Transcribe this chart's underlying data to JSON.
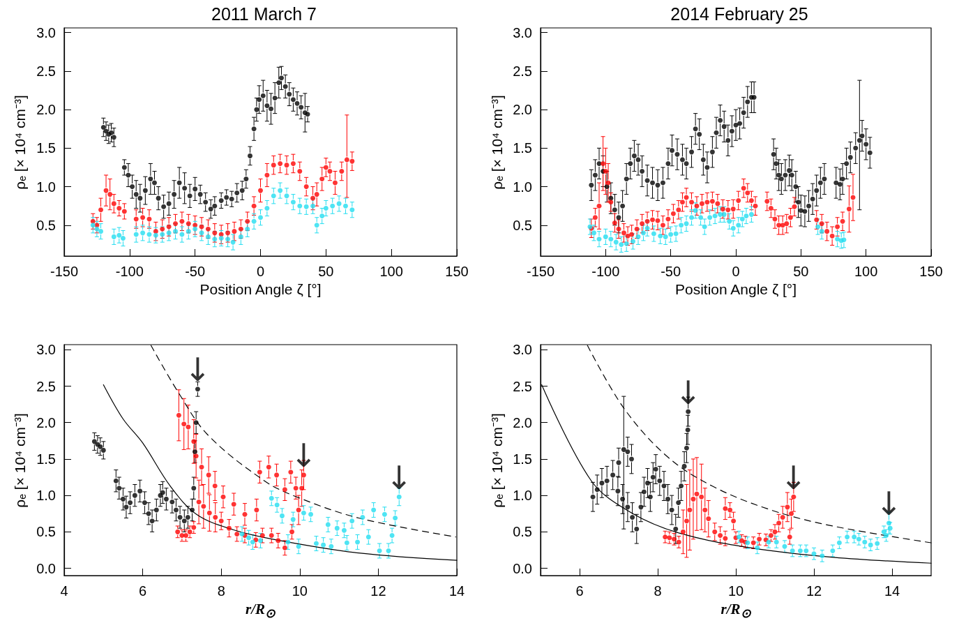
{
  "chart_data": [
    {
      "type": "scatter",
      "title": "2011 March 7",
      "xlabel": "Position Angle ζ [°]",
      "ylabel": "ρₑ [× 10⁴ cm⁻³]",
      "xlim": [
        -150,
        150
      ],
      "xticks": [
        -150,
        -100,
        -50,
        0,
        50,
        100,
        150
      ],
      "ylim": [
        0.1,
        3.06
      ],
      "yticks": [
        0.5,
        {
          "value": 1,
          "label": "1.0"
        },
        1.5,
        {
          "value": 2,
          "label": "2.0"
        },
        2.5,
        {
          "value": 3,
          "label": "3.0"
        }
      ],
      "grid": false,
      "marker": "circle",
      "series": [
        {
          "color": "#000000",
          "x": [
            -120,
            -118,
            -116,
            -114,
            -112,
            -104,
            -101,
            -98,
            -95,
            -92,
            -88,
            -84,
            -81,
            -78,
            -74,
            -70,
            -66,
            -62,
            -58,
            -54,
            -50,
            -46,
            -42,
            -38,
            -35,
            -30,
            -26,
            -22,
            -18,
            -14,
            -11,
            -8,
            -5,
            -3,
            -1,
            2,
            5,
            8,
            11,
            14,
            16,
            19,
            22,
            25,
            28,
            31,
            34,
            36
          ],
          "values": [
            1.77,
            1.72,
            1.68,
            1.7,
            1.64,
            1.25,
            1.15,
            1.0,
            0.9,
            0.85,
            0.95,
            1.1,
            1.05,
            0.85,
            0.74,
            0.78,
            0.9,
            1.05,
            0.98,
            0.88,
            0.97,
            0.9,
            0.8,
            0.71,
            0.75,
            0.82,
            0.86,
            0.84,
            0.92,
            0.95,
            1.1,
            1.4,
            1.75,
            2.0,
            2.13,
            2.18,
            2.05,
            2.01,
            2.15,
            2.35,
            2.41,
            2.3,
            2.2,
            2.13,
            2.08,
            2.03,
            1.96,
            1.94
          ],
          "errors": [
            0.12,
            0.12,
            0.12,
            0.12,
            0.12,
            0.1,
            0.15,
            0.15,
            0.18,
            0.18,
            0.18,
            0.2,
            0.15,
            0.15,
            0.15,
            0.15,
            0.18,
            0.2,
            0.2,
            0.15,
            0.15,
            0.12,
            0.12,
            0.12,
            0.12,
            0.1,
            0.1,
            0.1,
            0.12,
            0.12,
            0.12,
            0.12,
            0.15,
            0.15,
            0.18,
            0.2,
            0.2,
            0.2,
            0.2,
            0.2,
            0.15,
            0.15,
            0.15,
            0.15,
            0.15,
            0.15,
            0.25,
            0.1
          ]
        },
        {
          "color": "#ff0000",
          "x": [
            -128,
            -125,
            -122,
            -118,
            -115,
            -112,
            -108,
            -104,
            -95,
            -90,
            -85,
            -80,
            -75,
            -70,
            -65,
            -60,
            -55,
            -50,
            -45,
            -40,
            -35,
            -30,
            -25,
            -20,
            -15,
            -10,
            -5,
            0,
            5,
            10,
            15,
            20,
            25,
            30,
            35,
            40,
            43,
            47,
            50,
            53,
            57,
            62,
            66,
            70
          ],
          "values": [
            0.55,
            0.5,
            0.7,
            0.95,
            0.9,
            0.78,
            0.72,
            0.68,
            0.58,
            0.6,
            0.58,
            0.42,
            0.45,
            0.48,
            0.52,
            0.55,
            0.52,
            0.5,
            0.48,
            0.45,
            0.4,
            0.38,
            0.4,
            0.42,
            0.45,
            0.55,
            0.75,
            0.95,
            1.15,
            1.28,
            1.3,
            1.28,
            1.3,
            1.2,
            1.0,
            0.85,
            0.9,
            1.1,
            1.25,
            1.2,
            1.05,
            1.2,
            1.35,
            1.33
          ],
          "errors": [
            0.1,
            0.1,
            0.15,
            0.2,
            0.2,
            0.12,
            0.1,
            0.1,
            0.12,
            0.12,
            0.12,
            0.12,
            0.12,
            0.12,
            0.12,
            0.12,
            0.12,
            0.12,
            0.12,
            0.12,
            0.12,
            0.12,
            0.12,
            0.12,
            0.12,
            0.12,
            0.12,
            0.15,
            0.15,
            0.12,
            0.12,
            0.12,
            0.12,
            0.12,
            0.12,
            0.15,
            0.15,
            0.15,
            0.12,
            0.12,
            0.15,
            0.12,
            [
              0.86,
              1.93
            ],
            0.12
          ]
        },
        {
          "color": "#22ddf0",
          "x": [
            -128,
            -125,
            -122,
            -112,
            -108,
            -105,
            -95,
            -90,
            -85,
            -80,
            -75,
            -70,
            -65,
            -60,
            -55,
            -50,
            -45,
            -40,
            -35,
            -30,
            -25,
            -21,
            -15,
            -10,
            -5,
            0,
            5,
            10,
            15,
            20,
            25,
            30,
            35,
            40,
            43,
            47,
            50,
            55,
            60,
            65,
            70
          ],
          "values": [
            0.5,
            0.45,
            0.42,
            0.35,
            0.37,
            0.33,
            0.38,
            0.4,
            0.38,
            0.37,
            0.38,
            0.4,
            0.42,
            0.38,
            0.42,
            0.45,
            0.4,
            0.35,
            0.32,
            0.33,
            0.32,
            0.28,
            0.35,
            0.45,
            0.55,
            0.6,
            0.72,
            0.88,
            0.95,
            0.88,
            0.8,
            0.75,
            0.74,
            0.75,
            0.5,
            0.62,
            0.72,
            0.75,
            0.78,
            0.75,
            0.7
          ],
          "errors": [
            0.1,
            0.1,
            0.1,
            0.1,
            0.1,
            0.1,
            0.1,
            0.1,
            0.1,
            0.1,
            0.1,
            0.1,
            0.1,
            0.1,
            0.1,
            0.1,
            0.1,
            0.1,
            0.1,
            0.1,
            0.1,
            0.1,
            0.1,
            0.1,
            0.1,
            0.1,
            0.1,
            0.1,
            0.1,
            0.1,
            0.1,
            0.1,
            0.1,
            0.1,
            0.1,
            0.1,
            0.1,
            0.1,
            0.1,
            0.1,
            0.1
          ]
        }
      ]
    },
    {
      "type": "scatter",
      "title": "2014 February 25",
      "xlabel": "Position Angle ζ [°]",
      "ylabel": "ρₑ [× 10⁴ cm⁻³]",
      "xlim": [
        -150,
        150
      ],
      "xticks": [
        -150,
        -100,
        -50,
        0,
        50,
        100,
        150
      ],
      "ylim": [
        0.1,
        3.06
      ],
      "yticks": [
        0.5,
        {
          "value": 1,
          "label": "1.0"
        },
        1.5,
        {
          "value": 2,
          "label": "2.0"
        },
        2.5,
        {
          "value": 3,
          "label": "3.0"
        }
      ],
      "grid": false,
      "marker": "circle",
      "series": [
        {
          "color": "#000000",
          "x": [
            -111,
            -108,
            -105,
            -102,
            -99,
            -96,
            -93,
            -90,
            -87,
            -84,
            -81,
            -78,
            -75,
            -72,
            -68,
            -64,
            -60,
            -56,
            -52,
            -49,
            -45,
            -41,
            -38,
            -34,
            -31,
            -28,
            -25,
            -22,
            -18,
            -15,
            -12,
            -9,
            -6,
            -3,
            0,
            3,
            6,
            9,
            12,
            14,
            29,
            31,
            33,
            35,
            38,
            41,
            43,
            46,
            48,
            50,
            53,
            56,
            59,
            62,
            65,
            68,
            77,
            80,
            82,
            85,
            88,
            92,
            95,
            97,
            100,
            103
          ],
          "values": [
            1.02,
            1.15,
            1.3,
            1.2,
            1.0,
            0.85,
            0.7,
            0.6,
            0.75,
            1.1,
            1.3,
            1.4,
            1.35,
            1.2,
            1.08,
            1.05,
            1.02,
            1.05,
            1.3,
            1.47,
            1.42,
            1.35,
            1.3,
            1.45,
            1.75,
            1.68,
            1.35,
            1.25,
            1.45,
            1.7,
            1.86,
            1.78,
            1.6,
            1.72,
            1.8,
            1.82,
            1.96,
            2.1,
            2.16,
            2.16,
            1.42,
            1.3,
            1.15,
            1.1,
            1.15,
            1.21,
            1.15,
            1.0,
            0.8,
            0.69,
            0.68,
            0.75,
            0.84,
            0.95,
            1.05,
            1.1,
            1.05,
            1.03,
            1.1,
            1.3,
            1.38,
            1.5,
            1.6,
            1.66,
            1.55,
            1.44
          ],
          "errors": [
            0.2,
            0.2,
            0.2,
            0.2,
            0.2,
            0.2,
            0.2,
            0.2,
            0.2,
            0.2,
            0.2,
            0.2,
            0.2,
            0.2,
            0.2,
            0.2,
            0.2,
            0.2,
            0.2,
            0.2,
            0.2,
            0.2,
            0.2,
            0.2,
            0.2,
            0.2,
            0.2,
            0.2,
            0.2,
            0.2,
            0.2,
            0.2,
            0.2,
            0.2,
            0.2,
            0.2,
            0.2,
            0.2,
            0.2,
            0.2,
            0.2,
            0.2,
            0.2,
            0.2,
            0.2,
            0.2,
            0.2,
            0.2,
            0.2,
            0.2,
            0.2,
            0.2,
            0.2,
            0.2,
            0.2,
            0.2,
            0.2,
            0.2,
            0.2,
            0.2,
            0.2,
            0.2,
            [
              0.7,
              2.38
            ],
            0.2,
            0.2,
            0.2
          ]
        },
        {
          "color": "#ff0000",
          "x": [
            -111,
            -108,
            -105,
            -102,
            -100,
            -98,
            -96,
            -93,
            -90,
            -86,
            -83,
            -80,
            -76,
            -72,
            -68,
            -64,
            -60,
            -56,
            -52,
            -48,
            -44,
            -41,
            -38,
            -34,
            -30,
            -26,
            -22,
            -18,
            -14,
            -10,
            -6,
            -2,
            2,
            6,
            9,
            12,
            15,
            24,
            27,
            30,
            33,
            36,
            39,
            42,
            45,
            62,
            66,
            70,
            74,
            78,
            82,
            87,
            90
          ],
          "values": [
            0.46,
            0.6,
            0.75,
            1.3,
            1.2,
            1.05,
            0.8,
            0.53,
            0.45,
            0.4,
            0.36,
            0.38,
            0.45,
            0.52,
            0.55,
            0.57,
            0.56,
            0.5,
            0.58,
            0.65,
            0.7,
            0.8,
            0.86,
            0.8,
            0.75,
            0.78,
            0.8,
            0.81,
            0.78,
            0.71,
            0.7,
            0.71,
            0.82,
            0.98,
            0.92,
            0.82,
            0.75,
            0.81,
            0.72,
            0.58,
            0.5,
            0.5,
            0.52,
            0.6,
            0.74,
            0.57,
            0.52,
            0.42,
            0.36,
            0.48,
            0.55,
            0.71,
            0.86
          ],
          "errors": [
            0.12,
            0.12,
            0.3,
            0.35,
            0.3,
            0.25,
            0.12,
            0.12,
            0.12,
            0.12,
            0.12,
            0.12,
            0.12,
            0.12,
            0.12,
            0.12,
            0.12,
            0.12,
            0.12,
            0.12,
            0.12,
            0.12,
            0.12,
            0.12,
            0.12,
            0.12,
            0.12,
            0.12,
            0.12,
            0.12,
            0.12,
            0.12,
            0.12,
            0.12,
            0.12,
            0.12,
            0.12,
            0.12,
            0.12,
            0.12,
            0.12,
            0.12,
            0.12,
            0.12,
            0.12,
            0.12,
            0.12,
            0.12,
            0.12,
            0.12,
            0.12,
            0.3,
            0.3
          ]
        },
        {
          "color": "#22ddf0",
          "x": [
            -112,
            -109,
            -105,
            -100,
            -96,
            -92,
            -88,
            -84,
            -79,
            -75,
            -71,
            -68,
            -63,
            -58,
            -54,
            -50,
            -46,
            -42,
            -38,
            -34,
            -31,
            -27,
            -24,
            -20,
            -16,
            -12,
            -9,
            -5,
            -2,
            2,
            5,
            8,
            12,
            63,
            66,
            78,
            81,
            83
          ],
          "values": [
            0.48,
            0.4,
            0.32,
            0.35,
            0.32,
            0.28,
            0.25,
            0.26,
            0.29,
            0.35,
            0.4,
            0.46,
            0.39,
            0.36,
            0.35,
            0.38,
            0.39,
            0.5,
            0.52,
            0.6,
            0.69,
            0.6,
            0.48,
            0.6,
            0.62,
            0.64,
            0.64,
            0.55,
            0.46,
            0.5,
            0.58,
            0.62,
            0.64,
            0.48,
            0.42,
            0.32,
            0.3,
            0.31
          ],
          "errors": [
            0.1,
            0.1,
            0.1,
            0.1,
            0.1,
            0.1,
            0.1,
            0.1,
            0.1,
            0.1,
            0.1,
            0.1,
            0.1,
            0.1,
            0.1,
            0.1,
            0.1,
            0.1,
            0.1,
            0.1,
            0.1,
            0.1,
            0.1,
            0.1,
            0.1,
            0.1,
            0.1,
            0.1,
            0.1,
            0.1,
            0.1,
            0.1,
            0.1,
            0.1,
            0.1,
            0.1,
            0.1,
            0.1
          ]
        }
      ]
    },
    {
      "type": "scatter",
      "xlabel": "r/R$_{⊙}$",
      "ylabel": "ρₑ [× 10⁴ cm⁻³]",
      "xlim": [
        4,
        14
      ],
      "xticks": [
        4,
        6,
        8,
        10,
        12,
        14
      ],
      "ylim": [
        -0.1,
        3.07
      ],
      "yticks": [
        {
          "value": 0,
          "label": "0.0"
        },
        0.5,
        {
          "value": 1,
          "label": "1.0"
        },
        1.5,
        {
          "value": 2,
          "label": "2.0"
        },
        2.5,
        {
          "value": 3,
          "label": "3.0"
        }
      ],
      "grid": false,
      "marker": "circle",
      "annotations": [
        {
          "text": "↓",
          "x": 7.4,
          "y": 2.46
        },
        {
          "text": "↓",
          "x": 10.1,
          "y": 1.28
        },
        {
          "text": "↓",
          "x": 12.53,
          "y": 0.98
        }
      ],
      "series": [
        {
          "color": "#000000",
          "x": [
            4.77,
            4.85,
            4.92,
            5.0,
            5.32,
            5.4,
            5.5,
            5.58,
            5.68,
            5.8,
            5.93,
            6.05,
            6.15,
            6.24,
            6.35,
            6.45,
            6.51,
            6.6,
            6.75,
            6.85,
            6.95,
            7.06,
            7.15,
            7.26,
            7.3,
            7.33,
            7.36,
            7.4
          ],
          "values": [
            1.74,
            1.7,
            1.67,
            1.62,
            1.2,
            1.1,
            0.95,
            0.84,
            0.9,
            1.0,
            1.06,
            0.9,
            0.75,
            0.65,
            0.8,
            1.0,
            1.04,
            0.95,
            0.91,
            0.8,
            0.7,
            0.65,
            0.7,
            0.8,
            1.1,
            1.6,
            2.0,
            2.46
          ],
          "errors": [
            0.12,
            0.12,
            0.12,
            0.12,
            0.15,
            0.15,
            0.15,
            0.15,
            0.15,
            0.15,
            0.15,
            0.15,
            0.15,
            0.15,
            0.15,
            0.15,
            0.15,
            0.15,
            0.15,
            0.15,
            0.15,
            0.15,
            0.15,
            0.15,
            0.15,
            0.15,
            0.15,
            0.1
          ]
        },
        {
          "color": "#ff0000",
          "x": [
            6.89,
            7.0,
            7.1,
            7.2,
            7.3,
            6.92,
            7.05,
            7.16,
            7.3,
            7.36,
            7.5,
            7.68,
            7.84,
            8.05,
            8.32,
            8.6,
            8.9,
            7.43,
            7.55,
            7.7,
            7.85,
            8.0,
            8.2,
            8.4,
            8.6,
            8.88,
            9.05,
            9.28,
            9.45,
            9.62,
            9.8,
            9.97,
            10.05,
            10.1,
            8.98,
            9.21,
            9.41,
            9.62,
            9.77,
            9.9
          ],
          "values": [
            0.5,
            0.45,
            0.45,
            0.5,
            0.56,
            2.1,
            1.98,
            1.94,
            1.74,
            1.54,
            1.39,
            1.28,
            1.13,
            0.98,
            0.88,
            0.74,
            0.8,
            0.91,
            0.85,
            0.76,
            0.7,
            0.65,
            0.55,
            0.47,
            0.45,
            0.39,
            0.45,
            0.45,
            0.38,
            0.28,
            0.5,
            0.8,
            1.1,
            1.28,
            1.32,
            1.39,
            1.28,
            1.08,
            1.32,
            1.1
          ],
          "errors": [
            0.08,
            0.08,
            0.08,
            0.08,
            0.08,
            0.35,
            0.35,
            0.3,
            0.3,
            0.3,
            0.25,
            0.25,
            0.2,
            0.15,
            0.15,
            0.15,
            0.15,
            0.3,
            0.3,
            0.25,
            0.2,
            0.12,
            0.12,
            0.1,
            0.1,
            0.1,
            0.1,
            0.1,
            0.1,
            0.1,
            0.1,
            0.2,
            0.25,
            0.2,
            0.15,
            0.15,
            0.15,
            0.15,
            0.15,
            0.15
          ]
        },
        {
          "color": "#22ddf0",
          "x": [
            8.53,
            8.7,
            8.8,
            9.0,
            9.28,
            9.42,
            9.55,
            9.7,
            9.83,
            9.97,
            10.1,
            10.28,
            10.42,
            10.6,
            10.72,
            10.8,
            10.95,
            11.13,
            11.2,
            11.33,
            11.47,
            11.6,
            11.75,
            11.88,
            12.03,
            12.16,
            12.26,
            12.35,
            12.43,
            12.53
          ],
          "values": [
            0.47,
            0.42,
            0.36,
            0.38,
            0.96,
            0.87,
            0.72,
            0.36,
            0.67,
            0.3,
            0.76,
            0.74,
            0.34,
            0.32,
            0.6,
            0.3,
            0.55,
            0.52,
            0.35,
            0.65,
            0.36,
            0.7,
            0.43,
            0.8,
            0.24,
            0.74,
            0.24,
            0.45,
            0.69,
            0.98
          ],
          "errors": [
            0.1,
            0.1,
            0.1,
            0.1,
            0.1,
            0.1,
            0.1,
            0.1,
            0.1,
            0.1,
            0.1,
            0.1,
            0.1,
            0.1,
            0.1,
            0.1,
            0.1,
            0.1,
            0.1,
            0.1,
            0.1,
            0.1,
            0.1,
            0.1,
            0.1,
            0.1,
            0.1,
            0.1,
            0.1,
            0.12
          ]
        },
        {
          "type": "line",
          "color": "#000000",
          "line_style": "solid",
          "marker": "none",
          "x": [
            5.0,
            5.5,
            6.0,
            6.7,
            7.37,
            8.3,
            9.4,
            11.5,
            14.0
          ],
          "values": [
            2.52,
            2.05,
            1.72,
            1.13,
            0.74,
            0.53,
            0.39,
            0.21,
            0.11
          ]
        },
        {
          "type": "line",
          "color": "#000000",
          "line_style": "dashed",
          "marker": "none",
          "x": [
            6.21,
            6.9,
            7.66,
            9.1,
            9.92,
            11.5,
            13.97
          ],
          "values": [
            3.06,
            2.42,
            1.83,
            1.2,
            0.98,
            0.69,
            0.43
          ]
        }
      ]
    },
    {
      "type": "scatter",
      "xlabel": "r/R$_{⊙}$",
      "ylabel": "ρₑ [× 10⁴ cm⁻³]",
      "xlim": [
        5,
        15
      ],
      "xticks": [
        6,
        8,
        10,
        12,
        14
      ],
      "ylim": [
        -0.1,
        3.07
      ],
      "yticks": [
        {
          "value": 0,
          "label": "0.0"
        },
        0.5,
        {
          "value": 1,
          "label": "1.0"
        },
        1.5,
        {
          "value": 2,
          "label": "2.0"
        },
        2.5,
        {
          "value": 3,
          "label": "3.0"
        }
      ],
      "grid": false,
      "marker": "circle",
      "annotations": [
        {
          "text": "↓",
          "x": 8.78,
          "y": 2.15
        },
        {
          "text": "↓",
          "x": 11.48,
          "y": 0.98
        },
        {
          "text": "↓",
          "x": 13.92,
          "y": 0.62
        }
      ],
      "series": [
        {
          "color": "#000000",
          "x": [
            6.34,
            6.45,
            6.57,
            6.7,
            6.85,
            7.0,
            7.13,
            7.23,
            7.33,
            6.98,
            7.1,
            7.23,
            7.35,
            7.46,
            7.57,
            7.65,
            7.74,
            7.81,
            7.88,
            7.95,
            8.05,
            8.16,
            8.26,
            8.36,
            8.46,
            8.53,
            8.6,
            8.68,
            8.74,
            8.77,
            8.78
          ],
          "values": [
            0.98,
            1.08,
            1.17,
            1.2,
            1.28,
            1.45,
            1.63,
            1.6,
            1.5,
            1.06,
            0.95,
            0.84,
            0.7,
            0.54,
            0.84,
            1.05,
            1.17,
            0.98,
            1.25,
            1.36,
            1.2,
            1.13,
            0.95,
            0.8,
            0.54,
            0.9,
            1.13,
            1.4,
            1.65,
            1.9,
            2.15
          ],
          "errors": [
            0.2,
            0.2,
            0.2,
            0.2,
            0.2,
            0.2,
            [
              0.54,
              2.36
            ],
            0.2,
            0.2,
            0.2,
            0.2,
            0.2,
            0.2,
            0.2,
            0.2,
            0.2,
            0.2,
            0.2,
            0.2,
            0.2,
            0.2,
            0.2,
            0.2,
            0.2,
            0.2,
            0.2,
            0.2,
            0.2,
            0.2,
            0.2,
            0.2
          ]
        },
        {
          "color": "#ff0000",
          "x": [
            8.19,
            8.3,
            8.42,
            8.54,
            8.65,
            8.74,
            8.82,
            8.91,
            9.0,
            9.12,
            9.21,
            9.3,
            9.46,
            9.6,
            9.73,
            9.85,
            9.94,
            9.73,
            10.0,
            10.15,
            10.24,
            10.45,
            10.6,
            10.77,
            10.9,
            11.0,
            11.1,
            11.2,
            11.32,
            11.38,
            11.42,
            11.48
          ],
          "values": [
            0.43,
            0.42,
            0.4,
            0.36,
            0.5,
            0.65,
            0.8,
            0.95,
            1.02,
            0.98,
            0.8,
            0.68,
            0.5,
            0.45,
            0.82,
            0.8,
            0.65,
            0.41,
            0.42,
            0.38,
            0.36,
            0.35,
            0.4,
            0.39,
            0.45,
            0.5,
            0.62,
            0.7,
            0.84,
            0.43,
            0.75,
            0.98
          ],
          "errors": [
            0.08,
            0.08,
            0.08,
            0.08,
            0.3,
            0.5,
            0.55,
            0.55,
            0.5,
            0.45,
            0.3,
            0.25,
            0.12,
            0.12,
            0.15,
            0.1,
            0.12,
            0.1,
            0.08,
            0.08,
            0.08,
            0.08,
            0.08,
            0.08,
            0.08,
            0.1,
            0.12,
            0.15,
            0.2,
            0.1,
            0.2,
            0.2
          ]
        },
        {
          "color": "#22ddf0",
          "x": [
            10.08,
            10.3,
            10.55,
            10.84,
            11.04,
            11.25,
            11.45,
            11.65,
            11.8,
            12.0,
            12.21,
            12.48,
            12.65,
            12.85,
            13.03,
            13.15,
            13.3,
            13.45,
            13.62,
            13.79,
            13.85,
            13.92,
            13.95
          ],
          "values": [
            0.43,
            0.35,
            0.28,
            0.36,
            0.36,
            0.3,
            0.24,
            0.24,
            0.24,
            0.2,
            0.17,
            0.24,
            0.35,
            0.43,
            0.43,
            0.4,
            0.36,
            0.32,
            0.34,
            0.5,
            0.45,
            0.62,
            0.55
          ],
          "errors": [
            0.08,
            0.08,
            0.08,
            0.08,
            0.08,
            0.08,
            0.08,
            0.08,
            0.08,
            0.08,
            0.08,
            0.08,
            0.08,
            0.08,
            0.08,
            0.08,
            0.08,
            0.08,
            0.08,
            0.08,
            0.08,
            0.15,
            0.08
          ]
        },
        {
          "type": "line",
          "color": "#000000",
          "line_style": "solid",
          "marker": "none",
          "x": [
            5.03,
            6.3,
            7.33,
            8.57,
            10.4,
            12.5,
            15.0
          ],
          "values": [
            2.52,
            1.2,
            0.76,
            0.48,
            0.28,
            0.15,
            0.07
          ]
        },
        {
          "type": "line",
          "color": "#000000",
          "line_style": "dashed",
          "marker": "none",
          "x": [
            6.2,
            7.13,
            8.23,
            9.39,
            10.9,
            12.48,
            15.0
          ],
          "values": [
            3.06,
            2.2,
            1.54,
            1.13,
            0.8,
            0.58,
            0.35
          ]
        }
      ]
    }
  ]
}
